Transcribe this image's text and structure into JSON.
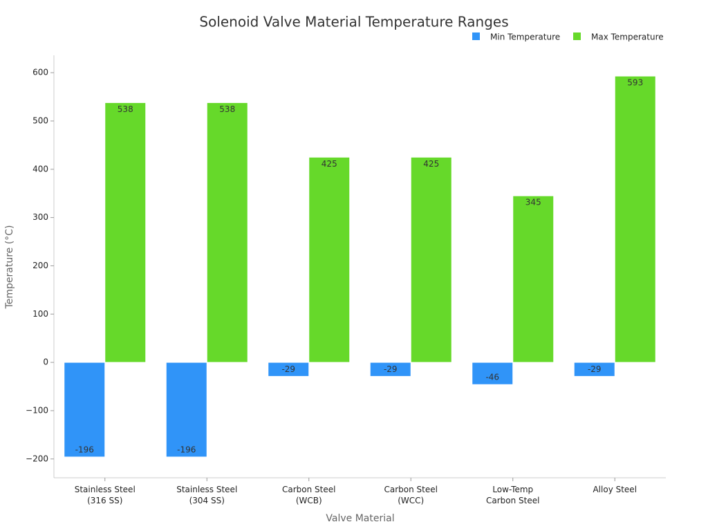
{
  "chart_data": {
    "type": "bar",
    "title": "Solenoid Valve Material Temperature Ranges",
    "x_label": "Valve Material",
    "y_label": "Temperature (°C)",
    "categories": [
      [
        "Stainless Steel",
        "(316 SS)"
      ],
      [
        "Stainless Steel",
        "(304 SS)"
      ],
      [
        "Carbon Steel",
        "(WCB)"
      ],
      [
        "Carbon Steel",
        "(WCC)"
      ],
      [
        "Low-Temp",
        "Carbon Steel"
      ],
      [
        "Alloy Steel"
      ]
    ],
    "series": [
      {
        "name": "Min Temperature",
        "color": "#3094f8",
        "values": [
          -196,
          -196,
          -29,
          -29,
          -46,
          -29
        ]
      },
      {
        "name": "Max Temperature",
        "color": "#66d92a",
        "values": [
          538,
          538,
          425,
          425,
          345,
          593
        ]
      }
    ],
    "ylim": [
      -239,
      636
    ],
    "yticks": [
      {
        "value": -200,
        "label": "−200"
      },
      {
        "value": -100,
        "label": "−100"
      },
      0,
      100,
      200,
      300,
      400,
      500,
      600
    ],
    "legend": "top-right"
  }
}
